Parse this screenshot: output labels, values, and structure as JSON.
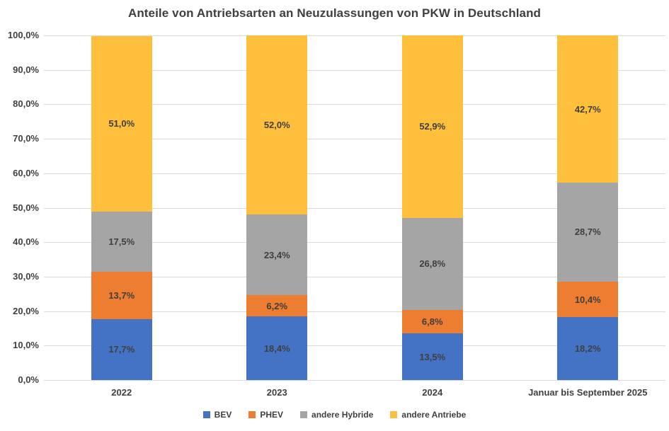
{
  "title": "Anteile von Antriebsarten an Neuzulassungen von PKW in Deutschland",
  "colors": {
    "bev": "#4472C4",
    "phev": "#ED7D31",
    "andere_hybride": "#A5A5A5",
    "andere_antriebe": "#FEC03C",
    "gridline": "#D9D9D9",
    "text": "#3F3F3F"
  },
  "chart_data": {
    "type": "bar",
    "stacked": true,
    "unit": "%",
    "title": "Anteile von Antriebsarten an Neuzulassungen von PKW in Deutschland",
    "xlabel": "",
    "ylabel": "",
    "ylim": [
      0,
      100
    ],
    "grid": true,
    "gridline_color": "#D9D9D9",
    "legend_position": "bottom",
    "categories": [
      "2022",
      "2023",
      "2024",
      "Januar bis September 2025"
    ],
    "ytick_labels": [
      "0,0%",
      "10,0%",
      "20,0%",
      "30,0%",
      "40,0%",
      "50,0%",
      "60,0%",
      "70,0%",
      "80,0%",
      "90,0%",
      "100,0%"
    ],
    "series": [
      {
        "name": "BEV",
        "color": "#4472C4",
        "values": [
          17.7,
          18.4,
          13.5,
          18.2
        ],
        "labels": [
          "17,7%",
          "18,4%",
          "13,5%",
          "18,2%"
        ]
      },
      {
        "name": "PHEV",
        "color": "#ED7D31",
        "values": [
          13.7,
          6.2,
          6.8,
          10.4
        ],
        "labels": [
          "13,7%",
          "6,2%",
          "6,8%",
          "10,4%"
        ]
      },
      {
        "name": "andere Hybride",
        "color": "#A5A5A5",
        "values": [
          17.5,
          23.4,
          26.8,
          28.7
        ],
        "labels": [
          "17,5%",
          "23,4%",
          "26,8%",
          "28,7%"
        ]
      },
      {
        "name": "andere Antriebe",
        "color": "#FEC03C",
        "values": [
          51.0,
          52.0,
          52.9,
          42.7
        ],
        "labels": [
          "51,0%",
          "52,0%",
          "52,9%",
          "42,7%"
        ]
      }
    ]
  }
}
